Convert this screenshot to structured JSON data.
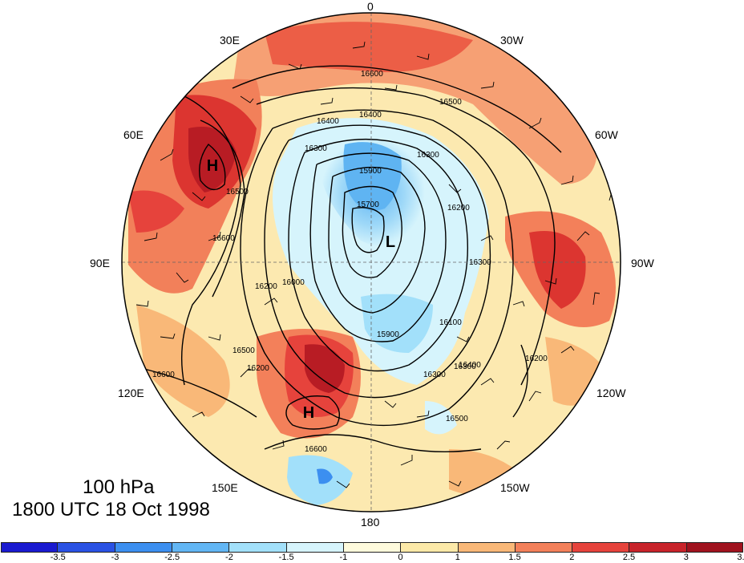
{
  "caption": {
    "level": "100 hPa",
    "timestamp": "1800 UTC 18 Oct 1998"
  },
  "longitude_labels": [
    {
      "text": "0",
      "id": "lon-0"
    },
    {
      "text": "30E",
      "id": "lon-30e"
    },
    {
      "text": "30W",
      "id": "lon-30w"
    },
    {
      "text": "60E",
      "id": "lon-60e"
    },
    {
      "text": "60W",
      "id": "lon-60w"
    },
    {
      "text": "90E",
      "id": "lon-90e"
    },
    {
      "text": "90W",
      "id": "lon-90w"
    },
    {
      "text": "120E",
      "id": "lon-120e"
    },
    {
      "text": "120W",
      "id": "lon-120w"
    },
    {
      "text": "150E",
      "id": "lon-150e"
    },
    {
      "text": "150W",
      "id": "lon-150w"
    },
    {
      "text": "180",
      "id": "lon-180"
    }
  ],
  "pressure_centers": [
    {
      "label": "H",
      "id": "high-center-west"
    },
    {
      "label": "H",
      "id": "high-center-south"
    },
    {
      "label": "L",
      "id": "low-center"
    }
  ],
  "contour_labels": [
    "16600",
    "16500",
    "16400",
    "16400",
    "16300",
    "16300",
    "15900",
    "15700",
    "16200",
    "16000",
    "16200",
    "16300",
    "16500",
    "16600",
    "15900",
    "16100",
    "16300",
    "16400",
    "16500",
    "16600",
    "16600",
    "16500",
    "16200",
    "16300",
    "16200"
  ],
  "colorbar": {
    "colors": [
      "#1a1ad0",
      "#2a52e4",
      "#3c8ff0",
      "#62b6f4",
      "#a2e0fa",
      "#d6f4fc",
      "#fefadc",
      "#fce9a8",
      "#f9b878",
      "#f3805a",
      "#e6433c",
      "#c8232a",
      "#a0121e"
    ],
    "tick_labels": [
      "-3.5",
      "-3",
      "-2.5",
      "-2",
      "-1.5",
      "-1",
      "0",
      "1",
      "1.5",
      "2",
      "2.5",
      "3",
      "3.5"
    ]
  }
}
